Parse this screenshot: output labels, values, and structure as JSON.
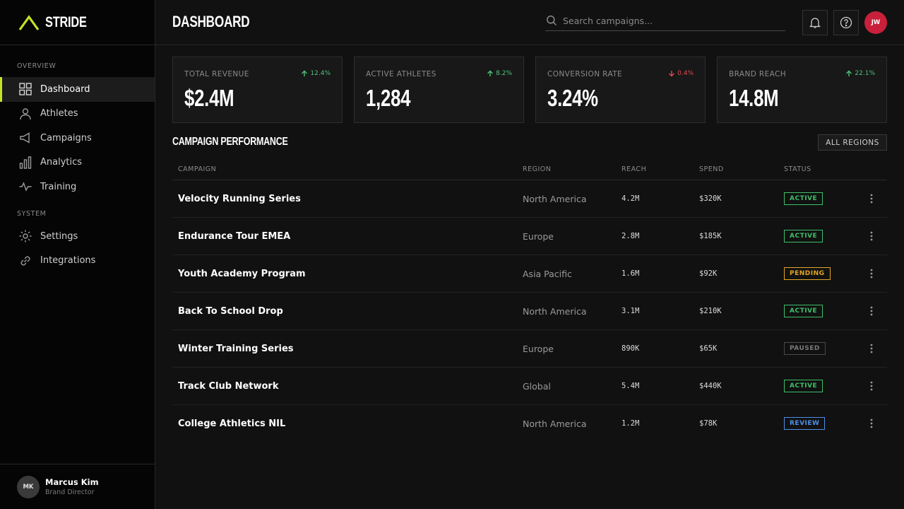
{
  "brand": {
    "name": "STRIDE",
    "accent": "#c6e227"
  },
  "sidebar": {
    "overview_label": "OVERVIEW",
    "system_label": "SYSTEM",
    "main_items": [
      {
        "label": "Dashboard",
        "icon": "dashboard-grid-icon",
        "active": true
      },
      {
        "label": "Athletes",
        "icon": "user-icon"
      },
      {
        "label": "Campaigns",
        "icon": "megaphone-icon"
      },
      {
        "label": "Analytics",
        "icon": "bar-chart-icon"
      },
      {
        "label": "Training",
        "icon": "pulse-icon"
      }
    ],
    "system_items": [
      {
        "label": "Settings",
        "icon": "gear-icon"
      },
      {
        "label": "Integrations",
        "icon": "link-icon"
      }
    ],
    "user": {
      "initials": "MK",
      "name": "Marcus Kim",
      "role": "Brand Director"
    }
  },
  "header": {
    "title": "DASHBOARD",
    "search_placeholder": "Search campaigns...",
    "avatar_initials": "JW",
    "avatar_color": "#c8203a"
  },
  "kpis": [
    {
      "label": "TOTAL REVENUE",
      "value": "$2.4M",
      "trend": "12.4%",
      "direction": "up"
    },
    {
      "label": "ACTIVE ATHLETES",
      "value": "1,284",
      "trend": "8.2%",
      "direction": "up"
    },
    {
      "label": "CONVERSION RATE",
      "value": "3.24%",
      "trend": "0.4%",
      "direction": "down"
    },
    {
      "label": "BRAND REACH",
      "value": "14.8M",
      "trend": "22.1%",
      "direction": "up"
    }
  ],
  "campaigns": {
    "title": "CAMPAIGN PERFORMANCE",
    "filter_label": "ALL REGIONS",
    "columns": {
      "campaign": "CAMPAIGN",
      "region": "REGION",
      "reach": "REACH",
      "spend": "SPEND",
      "status": "STATUS"
    },
    "rows": [
      {
        "name": "Velocity Running Series",
        "region": "North America",
        "reach": "4.2M",
        "spend": "$320K",
        "status": "ACTIVE"
      },
      {
        "name": "Endurance Tour EMEA",
        "region": "Europe",
        "reach": "2.8M",
        "spend": "$185K",
        "status": "ACTIVE"
      },
      {
        "name": "Youth Academy Program",
        "region": "Asia Pacific",
        "reach": "1.6M",
        "spend": "$92K",
        "status": "PENDING"
      },
      {
        "name": "Back To School Drop",
        "region": "North America",
        "reach": "3.1M",
        "spend": "$210K",
        "status": "ACTIVE"
      },
      {
        "name": "Winter Training Series",
        "region": "Europe",
        "reach": "890K",
        "spend": "$65K",
        "status": "PAUSED"
      },
      {
        "name": "Track Club Network",
        "region": "Global",
        "reach": "5.4M",
        "spend": "$440K",
        "status": "ACTIVE"
      },
      {
        "name": "College Athletics NIL",
        "region": "North America",
        "reach": "1.2M",
        "spend": "$78K",
        "status": "REVIEW"
      }
    ]
  },
  "status_colors": {
    "ACTIVE": "#3fbf6a",
    "PENDING": "#e2a526",
    "PAUSED": "#7a7a7a",
    "REVIEW": "#4f8fe6"
  }
}
